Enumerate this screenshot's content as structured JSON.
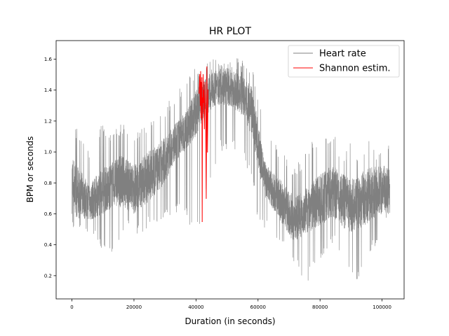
{
  "chart_data": {
    "type": "line",
    "title": "HR PLOT",
    "xlabel": "Duration (in seconds)",
    "ylabel": "BPM or seconds",
    "xlim": [
      -5100,
      107100
    ],
    "ylim": [
      0.05,
      1.72
    ],
    "xticks": [
      0,
      20000,
      40000,
      60000,
      80000,
      100000
    ],
    "yticks": [
      0.2,
      0.4,
      0.6,
      0.8,
      1.0,
      1.2,
      1.4,
      1.6
    ],
    "xtick_labels": [
      "0",
      "20000",
      "40000",
      "60000",
      "80000",
      "100000"
    ],
    "ytick_labels": [
      "0.2",
      "0.4",
      "0.6",
      "0.8",
      "1.0",
      "1.2",
      "1.4",
      "1.6"
    ],
    "grid": false,
    "legend_position": "top-right",
    "series": [
      {
        "name": "Heart rate",
        "color": "#808080",
        "envelope_x": [
          0,
          2000,
          4000,
          6000,
          8000,
          10000,
          12000,
          14000,
          16000,
          18000,
          20000,
          22000,
          24000,
          26000,
          28000,
          30000,
          32000,
          34000,
          36000,
          38000,
          40000,
          42000,
          44000,
          46000,
          48000,
          50000,
          52000,
          54000,
          56000,
          58000,
          60000,
          62000,
          64000,
          66000,
          68000,
          70000,
          72000,
          74000,
          76000,
          78000,
          80000,
          82000,
          84000,
          86000,
          88000,
          90000,
          92000,
          94000,
          96000,
          98000,
          100000,
          102500
        ],
        "envelope_mid_low": [
          0.6,
          0.56,
          0.58,
          0.55,
          0.58,
          0.6,
          0.62,
          0.65,
          0.64,
          0.62,
          0.6,
          0.63,
          0.66,
          0.7,
          0.75,
          0.8,
          0.9,
          0.95,
          1.0,
          1.05,
          1.1,
          1.2,
          1.25,
          1.3,
          1.3,
          1.3,
          1.28,
          1.25,
          1.2,
          1.1,
          0.9,
          0.7,
          0.65,
          0.6,
          0.52,
          0.45,
          0.42,
          0.45,
          0.48,
          0.5,
          0.52,
          0.55,
          0.58,
          0.55,
          0.5,
          0.48,
          0.5,
          0.52,
          0.55,
          0.58,
          0.6,
          0.6
        ],
        "envelope_mid_high": [
          1.0,
          0.9,
          0.85,
          0.8,
          0.85,
          0.9,
          0.92,
          0.95,
          0.98,
          0.95,
          0.92,
          0.95,
          1.0,
          1.02,
          1.05,
          1.1,
          1.15,
          1.2,
          1.25,
          1.32,
          1.4,
          1.45,
          1.5,
          1.52,
          1.55,
          1.55,
          1.52,
          1.5,
          1.48,
          1.42,
          1.2,
          0.95,
          0.88,
          0.85,
          0.8,
          0.75,
          0.72,
          0.75,
          0.78,
          0.82,
          0.85,
          0.9,
          0.92,
          0.88,
          0.85,
          0.82,
          0.85,
          0.88,
          0.9,
          0.92,
          0.92,
          0.9
        ],
        "envelope_min": [
          0.49,
          0.5,
          0.52,
          0.45,
          0.4,
          0.35,
          0.3,
          0.4,
          0.45,
          0.5,
          0.48,
          0.45,
          0.5,
          0.55,
          0.5,
          0.55,
          0.6,
          0.6,
          0.65,
          0.5,
          0.45,
          0.55,
          0.8,
          0.9,
          1.0,
          1.0,
          1.0,
          1.0,
          0.9,
          0.85,
          0.55,
          0.5,
          0.45,
          0.4,
          0.35,
          0.3,
          0.25,
          0.2,
          0.15,
          0.25,
          0.3,
          0.35,
          0.4,
          0.35,
          0.28,
          0.2,
          0.15,
          0.3,
          0.35,
          0.4,
          0.45,
          0.55
        ],
        "envelope_max": [
          1.19,
          1.15,
          1.05,
          1.0,
          1.15,
          1.2,
          1.15,
          1.15,
          1.2,
          1.18,
          1.12,
          1.15,
          1.2,
          1.22,
          1.3,
          1.3,
          1.35,
          1.4,
          1.45,
          1.5,
          1.55,
          1.58,
          1.6,
          1.6,
          1.62,
          1.63,
          1.62,
          1.6,
          1.58,
          1.55,
          1.4,
          1.2,
          1.1,
          1.05,
          1.0,
          0.95,
          0.92,
          0.95,
          1.05,
          1.1,
          1.05,
          1.1,
          1.15,
          1.05,
          1.0,
          1.1,
          1.02,
          1.05,
          1.08,
          1.0,
          1.05,
          1.06
        ]
      },
      {
        "name": "Shannon estim.",
        "color": "#ff0000",
        "x": [
          41000,
          41200,
          41400,
          41500,
          41600,
          41700,
          41800,
          41900,
          42000,
          42100,
          42200,
          42300,
          42400,
          42500,
          42700,
          42900,
          43100,
          43300,
          43500,
          43700,
          43900
        ],
        "y": [
          1.38,
          1.5,
          1.3,
          1.52,
          1.22,
          1.45,
          1.28,
          1.48,
          0.55,
          1.35,
          1.25,
          1.5,
          1.32,
          1.4,
          1.15,
          1.45,
          1.3,
          0.7,
          1.55,
          1.0,
          1.4
        ]
      }
    ]
  }
}
